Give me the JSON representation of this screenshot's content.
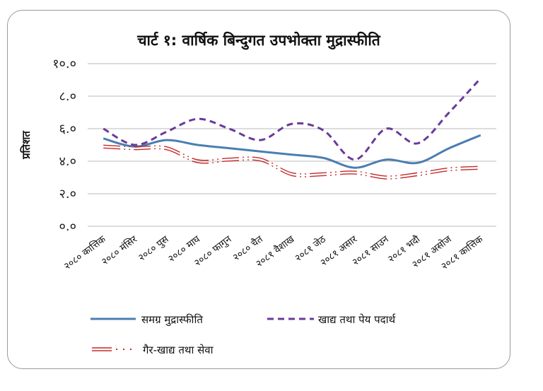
{
  "chart_data": {
    "type": "line",
    "title": "चार्ट १: वार्षिक बिन्दुगत उपभोक्ता मुद्रास्फीति",
    "ylabel": "प्रतिशत",
    "xlabel": "",
    "ylim": [
      0,
      10
    ],
    "yticks": [
      0,
      2,
      4,
      6,
      8,
      10
    ],
    "ytick_labels": [
      "०.०",
      "२.०",
      "४.०",
      "६.०",
      "८.०",
      "१०.०"
    ],
    "grid": true,
    "legend_position": "bottom",
    "categories": [
      "२०८० कात्तिक",
      "२०८० मंसिर",
      "२०८० पुस",
      "२०८० माघ",
      "२०८० फागुन",
      "२०८० चैत",
      "२०८१ वैशाख",
      "२०८१ जेठ",
      "२०८१ असार",
      "२०८१ साउन",
      "२०८१ भदौ",
      "२०८१ असोज",
      "२०८१ कात्तिक"
    ],
    "series": [
      {
        "name": "समग्र मुद्रास्फीति",
        "color": "#4a7eb1",
        "style": "solid",
        "values": [
          5.4,
          4.9,
          5.3,
          5.0,
          4.8,
          4.6,
          4.4,
          4.2,
          3.6,
          4.1,
          3.9,
          4.8,
          5.6
        ]
      },
      {
        "name": "खाद्य तथा पेय पदार्थ",
        "color": "#6a3a9a",
        "style": "dashed",
        "values": [
          6.0,
          5.0,
          5.8,
          6.6,
          6.0,
          5.3,
          6.3,
          5.9,
          4.1,
          6.0,
          5.1,
          7.0,
          9.1
        ]
      },
      {
        "name": "गैर-खाद्य तथा सेवा",
        "color": "#c42a2a",
        "style": "double-dotted",
        "values": [
          4.9,
          4.8,
          4.8,
          4.0,
          4.1,
          4.1,
          3.2,
          3.2,
          3.3,
          3.0,
          3.2,
          3.5,
          3.6
        ]
      }
    ]
  },
  "colors": {
    "grid": "#bbbbbb",
    "frame": "#9a9a9a"
  }
}
